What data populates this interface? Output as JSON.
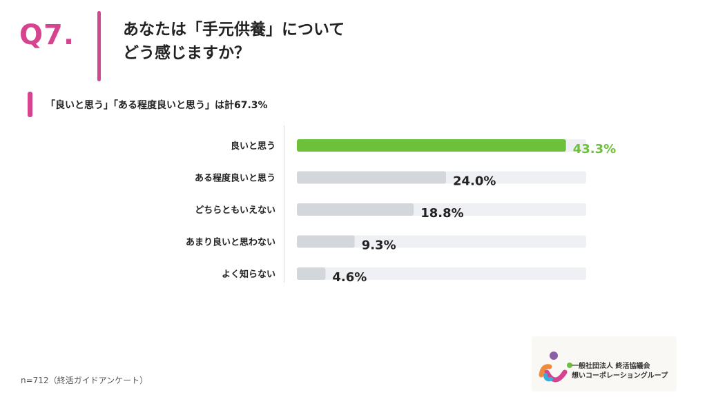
{
  "header": {
    "qnum": "Q7.",
    "title_line1": "あなたは「手元供養」について",
    "title_line2": "どう感じますか？",
    "subtitle": "「良いと思う」「ある程度良いと思う」は計67.3%"
  },
  "chart_data": {
    "type": "bar",
    "orientation": "horizontal",
    "categories": [
      "良いと思う",
      "ある程度良いと思う",
      "どちらともいえない",
      "あまり良いと思わない",
      "よく知らない"
    ],
    "values": [
      43.3,
      24.0,
      18.8,
      9.3,
      4.6
    ],
    "value_labels": [
      "43.3%",
      "24.0%",
      "18.8%",
      "9.3%",
      "4.6%"
    ],
    "xlim": [
      0,
      45
    ],
    "highlight_color": "#6cc03a",
    "bar_color": "#d3d6db",
    "track_color": "#eef0f3",
    "grid": false
  },
  "footer": {
    "note": "n=712（終活ガイドアンケート）"
  },
  "logo": {
    "line1": "一般社団法人 終活協議会",
    "line2": "想いコーポレーショングループ"
  },
  "colors": {
    "accent": "#d6438f",
    "text": "#222222"
  }
}
